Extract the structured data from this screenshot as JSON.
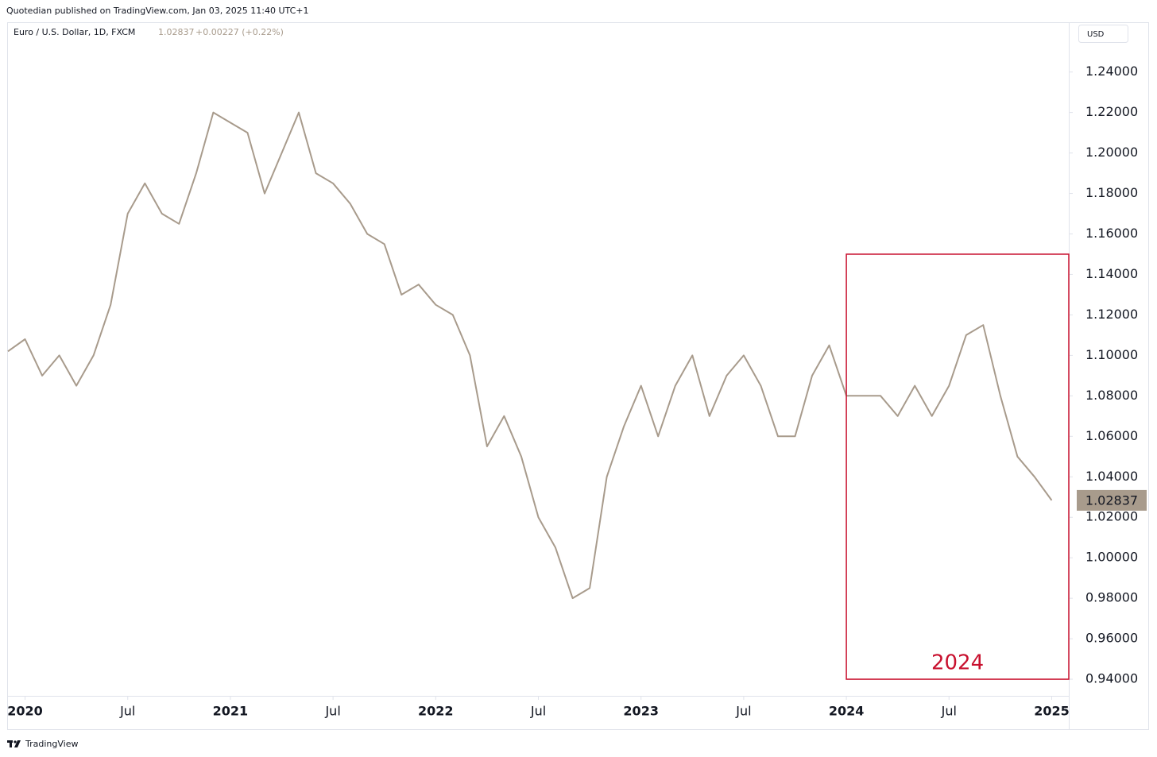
{
  "header": "Quotedian published on TradingView.com, Jan 03, 2025 11:40 UTC+1",
  "footer": "TradingView",
  "chart_data": {
    "type": "line",
    "symbol": "Euro / U.S. Dollar, 1D, FXCM",
    "last": 1.02837,
    "change": "+0.00227 (+0.22%)",
    "currency": "USD",
    "color": "#a89b8c",
    "x": [
      "2019-12",
      "2020-01",
      "2020-02",
      "2020-03",
      "2020-04",
      "2020-05",
      "2020-06",
      "2020-07",
      "2020-08",
      "2020-09",
      "2020-10",
      "2020-11",
      "2020-12",
      "2021-01",
      "2021-02",
      "2021-03",
      "2021-04",
      "2021-05",
      "2021-06",
      "2021-07",
      "2021-08",
      "2021-09",
      "2021-10",
      "2021-11",
      "2021-12",
      "2022-01",
      "2022-02",
      "2022-03",
      "2022-04",
      "2022-05",
      "2022-06",
      "2022-07",
      "2022-08",
      "2022-09",
      "2022-10",
      "2022-11",
      "2022-12",
      "2023-01",
      "2023-02",
      "2023-03",
      "2023-04",
      "2023-05",
      "2023-06",
      "2023-07",
      "2023-08",
      "2023-09",
      "2023-10",
      "2023-11",
      "2023-12",
      "2024-01",
      "2024-02",
      "2024-03",
      "2024-04",
      "2024-05",
      "2024-06",
      "2024-07",
      "2024-08",
      "2024-09",
      "2024-10",
      "2024-11",
      "2024-12",
      "2025-01"
    ],
    "values": [
      1.102,
      1.108,
      1.09,
      1.1,
      1.085,
      1.1,
      1.125,
      1.17,
      1.185,
      1.17,
      1.165,
      1.19,
      1.22,
      1.215,
      1.21,
      1.18,
      1.2,
      1.22,
      1.19,
      1.185,
      1.175,
      1.16,
      1.155,
      1.13,
      1.135,
      1.125,
      1.12,
      1.1,
      1.055,
      1.07,
      1.05,
      1.02,
      1.005,
      0.98,
      0.985,
      1.04,
      1.065,
      1.085,
      1.06,
      1.085,
      1.1,
      1.07,
      1.09,
      1.1,
      1.085,
      1.06,
      1.06,
      1.09,
      1.105,
      1.08,
      1.08,
      1.08,
      1.07,
      1.085,
      1.07,
      1.085,
      1.11,
      1.115,
      1.08,
      1.05,
      1.04,
      1.02837
    ],
    "xlim": [
      "2019-12",
      "2025-02"
    ],
    "xticks": [
      {
        "value": "2020-01",
        "label": "2020"
      },
      {
        "value": "2020-07",
        "label": "Jul"
      },
      {
        "value": "2021-01",
        "label": "2021"
      },
      {
        "value": "2021-07",
        "label": "Jul"
      },
      {
        "value": "2022-01",
        "label": "2022"
      },
      {
        "value": "2022-07",
        "label": "Jul"
      },
      {
        "value": "2023-01",
        "label": "2023"
      },
      {
        "value": "2023-07",
        "label": "Jul"
      },
      {
        "value": "2024-01",
        "label": "2024"
      },
      {
        "value": "2024-07",
        "label": "Jul"
      },
      {
        "value": "2025-01",
        "label": "2025"
      }
    ],
    "ylim": [
      0.931,
      1.254
    ],
    "yticks": [
      {
        "value": 0.94,
        "label": "0.94000"
      },
      {
        "value": 0.96,
        "label": "0.96000"
      },
      {
        "value": 0.98,
        "label": "0.98000"
      },
      {
        "value": 1.0,
        "label": "1.00000"
      },
      {
        "value": 1.02,
        "label": "1.02000"
      },
      {
        "value": 1.04,
        "label": "1.04000"
      },
      {
        "value": 1.06,
        "label": "1.06000"
      },
      {
        "value": 1.08,
        "label": "1.08000"
      },
      {
        "value": 1.1,
        "label": "1.10000"
      },
      {
        "value": 1.12,
        "label": "1.12000"
      },
      {
        "value": 1.14,
        "label": "1.14000"
      },
      {
        "value": 1.16,
        "label": "1.16000"
      },
      {
        "value": 1.18,
        "label": "1.18000"
      },
      {
        "value": 1.2,
        "label": "1.20000"
      },
      {
        "value": 1.22,
        "label": "1.22000"
      },
      {
        "value": 1.24,
        "label": "1.24000"
      }
    ],
    "annotations": [
      {
        "text": "2024",
        "x": [
          "2024-01",
          "2025-02"
        ],
        "y": [
          0.94,
          1.15
        ],
        "color": "#c8102e"
      }
    ]
  }
}
